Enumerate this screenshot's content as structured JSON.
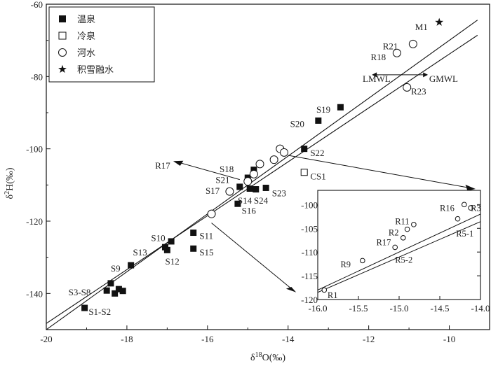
{
  "chart_data": {
    "type": "scatter",
    "title": "",
    "xlabel_main": "δ",
    "xlabel_sup": "18",
    "xlabel_rest": "O(‰)",
    "ylabel_main": "δ",
    "ylabel_sup": "2",
    "ylabel_rest": "H(‰)",
    "xlim": [
      -20,
      -9
    ],
    "ylim": [
      -150,
      -60
    ],
    "x_ticks": [
      {
        "v": -20,
        "label": "-20"
      },
      {
        "v": -18,
        "label": "-18"
      },
      {
        "v": -16,
        "label": "-16"
      },
      {
        "v": -14,
        "label": "-14"
      },
      {
        "v": -12,
        "label": "-12"
      },
      {
        "v": -10,
        "label": "-10"
      }
    ],
    "y_ticks": [
      {
        "v": -140,
        "label": "-140"
      },
      {
        "v": -120,
        "label": "-120"
      },
      {
        "v": -100,
        "label": "-100"
      },
      {
        "v": -80,
        "label": "-80"
      },
      {
        "v": -60,
        "label": "-60"
      }
    ],
    "legend": [
      {
        "name": "温泉",
        "marker": "filled-square"
      },
      {
        "name": "冷泉",
        "marker": "open-square"
      },
      {
        "name": "河水",
        "marker": "open-circle"
      },
      {
        "name": "积雪融水",
        "marker": "star"
      }
    ],
    "lines": [
      {
        "name": "GMWL",
        "slope": 8,
        "intercept": 10,
        "x_range": [
          -20,
          -9.3
        ]
      },
      {
        "name": "LMWL",
        "slope": 7.45,
        "intercept": 0.7,
        "x_range": [
          -20,
          -9.3
        ]
      }
    ],
    "series": [
      {
        "name": "温泉",
        "marker": "filled-square",
        "points": [
          {
            "x": -19.05,
            "y": -144
          },
          {
            "x": -18.5,
            "y": -139.2
          },
          {
            "x": -18.4,
            "y": -137.2
          },
          {
            "x": -18.3,
            "y": -140.0
          },
          {
            "x": -18.2,
            "y": -138.8
          },
          {
            "x": -18.1,
            "y": -139.3
          },
          {
            "x": -17.9,
            "y": -132.2
          },
          {
            "x": -17.05,
            "y": -127.2
          },
          {
            "x": -17.0,
            "y": -128.0
          },
          {
            "x": -16.9,
            "y": -125.6
          },
          {
            "x": -16.35,
            "y": -123.2
          },
          {
            "x": -16.35,
            "y": -127.6
          },
          {
            "x": -15.25,
            "y": -115.2
          },
          {
            "x": -15.2,
            "y": -110.5
          },
          {
            "x": -15.0,
            "y": -108.0
          },
          {
            "x": -14.95,
            "y": -111.0
          },
          {
            "x": -14.8,
            "y": -111.2
          },
          {
            "x": -14.85,
            "y": -105.8
          },
          {
            "x": -14.55,
            "y": -110.8
          },
          {
            "x": -13.6,
            "y": -100.0
          },
          {
            "x": -13.25,
            "y": -92.2
          },
          {
            "x": -12.7,
            "y": -88.5
          }
        ]
      },
      {
        "name": "冷泉",
        "marker": "open-square",
        "points": [
          {
            "x": -13.6,
            "y": -106.5
          }
        ]
      },
      {
        "name": "河水",
        "marker": "open-circle",
        "points": [
          {
            "x": -15.9,
            "y": -118.0
          },
          {
            "x": -15.45,
            "y": -111.8
          },
          {
            "x": -15.0,
            "y": -109.0
          },
          {
            "x": -14.85,
            "y": -107.0
          },
          {
            "x": -14.7,
            "y": -104.2
          },
          {
            "x": -14.35,
            "y": -103.0
          },
          {
            "x": -14.2,
            "y": -100.0
          },
          {
            "x": -14.1,
            "y": -101.0
          },
          {
            "x": -11.3,
            "y": -73.5
          },
          {
            "x": -10.9,
            "y": -71.0
          },
          {
            "x": -11.05,
            "y": -83.0
          }
        ]
      },
      {
        "name": "积雪融水",
        "marker": "star",
        "points": [
          {
            "x": -10.25,
            "y": -65.0
          }
        ]
      }
    ],
    "annotations": [
      {
        "text": "M1",
        "x": -10.85,
        "y": -66.2
      },
      {
        "text": "R21",
        "x": -11.65,
        "y": -71.5
      },
      {
        "text": "R18",
        "x": -11.95,
        "y": -74.5
      },
      {
        "text": "LMWL",
        "x": -12.15,
        "y": -80.5
      },
      {
        "text": "GMWL",
        "x": -10.5,
        "y": -80.5
      },
      {
        "text": "R23",
        "x": -10.95,
        "y": -84.0
      },
      {
        "text": "S19",
        "x": -13.3,
        "y": -89.0
      },
      {
        "text": "S20",
        "x": -13.95,
        "y": -93.0
      },
      {
        "text": "S22",
        "x": -13.45,
        "y": -101.0
      },
      {
        "text": "CS1",
        "x": -13.45,
        "y": -107.5
      },
      {
        "text": "R17",
        "x": -17.3,
        "y": -104.5
      },
      {
        "text": "S18",
        "x": -15.7,
        "y": -105.5
      },
      {
        "text": "S21",
        "x": -15.8,
        "y": -108.5
      },
      {
        "text": "S17",
        "x": -16.05,
        "y": -111.5
      },
      {
        "text": "S23",
        "x": -14.4,
        "y": -112.2
      },
      {
        "text": "S14",
        "x": -15.25,
        "y": -114.2
      },
      {
        "text": "S24",
        "x": -14.85,
        "y": -114.2
      },
      {
        "text": "S16",
        "x": -15.15,
        "y": -117.0
      },
      {
        "text": "S10",
        "x": -17.4,
        "y": -124.5
      },
      {
        "text": "S11",
        "x": -16.2,
        "y": -124.0
      },
      {
        "text": "S13",
        "x": -17.85,
        "y": -128.5
      },
      {
        "text": "S12",
        "x": -17.05,
        "y": -131.0
      },
      {
        "text": "S15",
        "x": -16.2,
        "y": -128.5
      },
      {
        "text": "S9",
        "x": -18.4,
        "y": -133.0
      },
      {
        "text": "S3-S8",
        "x": -19.45,
        "y": -139.5
      },
      {
        "text": "S1-S2",
        "x": -18.95,
        "y": -145.0
      }
    ],
    "inset": {
      "xlim": [
        -16.0,
        -14.0
      ],
      "ylim": [
        -120,
        -97
      ],
      "x_ticks": [
        {
          "v": -16.0,
          "label": "-16.0"
        },
        {
          "v": -15.5,
          "label": "-15.5"
        },
        {
          "v": -15.0,
          "label": "-15.0"
        },
        {
          "v": -14.5,
          "label": "-14.5"
        },
        {
          "v": -14.0,
          "label": "-14.0"
        }
      ],
      "y_ticks": [
        {
          "v": -100,
          "label": "-100"
        },
        {
          "v": -105,
          "label": "-105"
        },
        {
          "v": -110,
          "label": "-110"
        },
        {
          "v": -115,
          "label": "-115"
        },
        {
          "v": -120,
          "label": "-120"
        }
      ],
      "points": [
        {
          "x": -15.92,
          "y": -118.0,
          "label": "R1"
        },
        {
          "x": -15.45,
          "y": -111.8,
          "label": "R9"
        },
        {
          "x": -15.05,
          "y": -109.0,
          "label": "R5-2"
        },
        {
          "x": -14.95,
          "y": -107.0,
          "label": "R17"
        },
        {
          "x": -14.9,
          "y": -105.2,
          "label": "R2"
        },
        {
          "x": -14.82,
          "y": -104.2,
          "label": "R11"
        },
        {
          "x": -14.28,
          "y": -103.0,
          "label": "R5-1"
        },
        {
          "x": -14.2,
          "y": -100.0,
          "label": "R16"
        },
        {
          "x": -14.12,
          "y": -100.7,
          "label": "R3"
        }
      ],
      "inset_labels": [
        {
          "text": "R1",
          "x": -15.88,
          "y": -119.0
        },
        {
          "text": "R9",
          "x": -15.72,
          "y": -112.5
        },
        {
          "text": "R5-2",
          "x": -15.05,
          "y": -111.5
        },
        {
          "text": "R17",
          "x": -15.28,
          "y": -107.8
        },
        {
          "text": "R2",
          "x": -15.13,
          "y": -105.8
        },
        {
          "text": "R11",
          "x": -15.05,
          "y": -103.4
        },
        {
          "text": "R5-1",
          "x": -14.3,
          "y": -106.0
        },
        {
          "text": "R16",
          "x": -14.5,
          "y": -100.6
        },
        {
          "text": "R3",
          "x": -14.12,
          "y": -100.6
        }
      ]
    }
  }
}
